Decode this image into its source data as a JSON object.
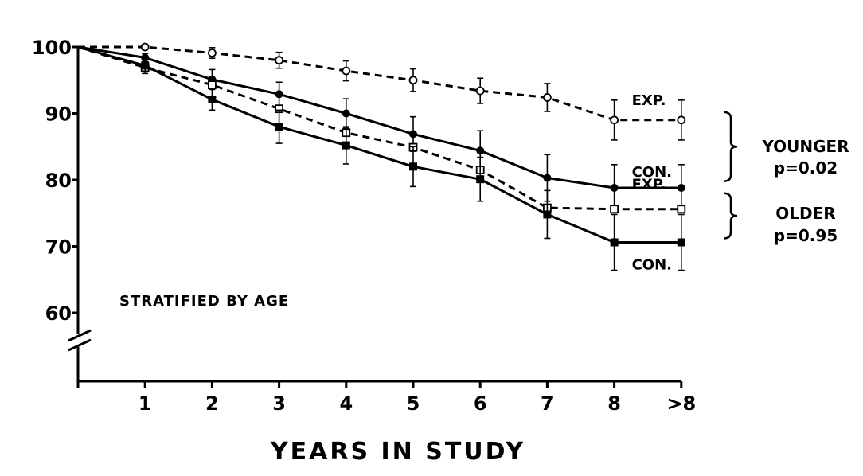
{
  "chart_data": {
    "type": "line",
    "title": "",
    "xlabel": "YEARS IN STUDY",
    "ylabel": "",
    "x_ticks": [
      "1",
      "2",
      "3",
      "4",
      "5",
      "6",
      "7",
      "8",
      ">8"
    ],
    "y_ticks": [
      "100",
      "90",
      "80",
      "70",
      "60"
    ],
    "ylim": [
      60,
      100
    ],
    "axis_break": true,
    "grid": false,
    "note": "STRATIFIED BY AGE",
    "series": [
      {
        "group": "YOUNGER",
        "label": "EXP.",
        "line": "dashed",
        "marker": "open-circle",
        "x": [
          0,
          1,
          2,
          3,
          4,
          5,
          6,
          7,
          8,
          9
        ],
        "y": [
          100,
          100,
          99.1,
          98,
          96.4,
          95,
          93.4,
          92.4,
          89,
          89
        ],
        "err": [
          0,
          0,
          0.8,
          1.2,
          1.5,
          1.7,
          1.9,
          2.1,
          3,
          3
        ]
      },
      {
        "group": "YOUNGER",
        "label": "CON.",
        "line": "solid",
        "marker": "filled-circle",
        "x": [
          0,
          1,
          2,
          3,
          4,
          5,
          6,
          7,
          8,
          9
        ],
        "y": [
          100,
          98.4,
          95.1,
          92.9,
          90,
          86.9,
          84.4,
          80.3,
          78.8,
          78.8
        ],
        "err": [
          0,
          0.6,
          1.5,
          1.8,
          2.2,
          2.6,
          3,
          3.5,
          3.5,
          3.5
        ]
      },
      {
        "group": "OLDER",
        "label": "EXP.",
        "line": "dashed",
        "marker": "open-square",
        "x": [
          0,
          1,
          2,
          3,
          4,
          5,
          6,
          7,
          8,
          9
        ],
        "y": [
          100,
          96.9,
          94.3,
          90.7,
          87.1,
          84.9,
          81.5,
          75.8,
          75.6,
          75.6
        ],
        "err": [
          0,
          0,
          0,
          0,
          0,
          0,
          0,
          0,
          0,
          0
        ]
      },
      {
        "group": "OLDER",
        "label": "CON.",
        "line": "solid",
        "marker": "filled-square",
        "x": [
          0,
          1,
          2,
          3,
          4,
          5,
          6,
          7,
          8,
          9
        ],
        "y": [
          100,
          97.2,
          92.1,
          88,
          85.2,
          82,
          80.1,
          74.8,
          70.6,
          70.6
        ],
        "err": [
          0,
          1.2,
          1.6,
          2.5,
          2.8,
          3,
          3.3,
          3.6,
          4.2,
          4.2
        ]
      }
    ],
    "groups": [
      {
        "name": "YOUNGER",
        "p": "p=0.02"
      },
      {
        "name": "OLDER",
        "p": "p=0.95"
      }
    ]
  }
}
